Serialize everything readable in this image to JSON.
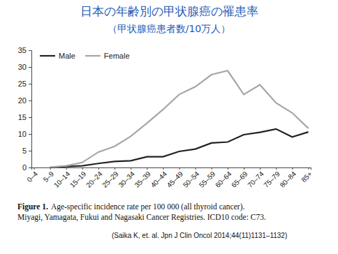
{
  "chart_data": {
    "type": "line",
    "title": "日本の年齢別の甲状腺癌の罹患率",
    "subtitle": "（甲状腺癌患者数/10万人）",
    "caption_label": "Figure 1.",
    "caption": [
      "Age-specific incidence rate per 100 000 (all thyroid cancer).",
      "Miyagi, Yamagata, Fukui and Nagasaki Cancer Registries. ICD10 code: C73."
    ],
    "source": "(Saika K, et. al. Jpn J Clin Oncol 2014;44(11)1131–1132)",
    "categories": [
      "0–4",
      "5–9",
      "10–14",
      "15–19",
      "20–24",
      "25–29",
      "30–34",
      "35–39",
      "40–44",
      "45–49",
      "50–54",
      "55–59",
      "60–64",
      "65–69",
      "70–74",
      "75–79",
      "80–84",
      "85+"
    ],
    "series": [
      {
        "name": "Male",
        "color": "#222222",
        "values": [
          null,
          0,
          0.3,
          0.5,
          1.2,
          1.8,
          2.0,
          3.2,
          3.2,
          4.8,
          5.5,
          7.3,
          7.6,
          9.8,
          10.5,
          11.5,
          9.1,
          10.6
        ]
      },
      {
        "name": "Female",
        "color": "#a6a6a6",
        "values": [
          null,
          0.1,
          0.5,
          1.5,
          4.6,
          6.3,
          9.3,
          13.2,
          17.3,
          21.8,
          24.1,
          27.7,
          28.9,
          21.8,
          24.7,
          19.3,
          16.3,
          11.7
        ]
      }
    ],
    "ylim": [
      0,
      35
    ],
    "yticks": [
      0,
      5,
      10,
      15,
      20,
      25,
      30,
      35
    ],
    "grid": false,
    "legend": "top-left"
  }
}
